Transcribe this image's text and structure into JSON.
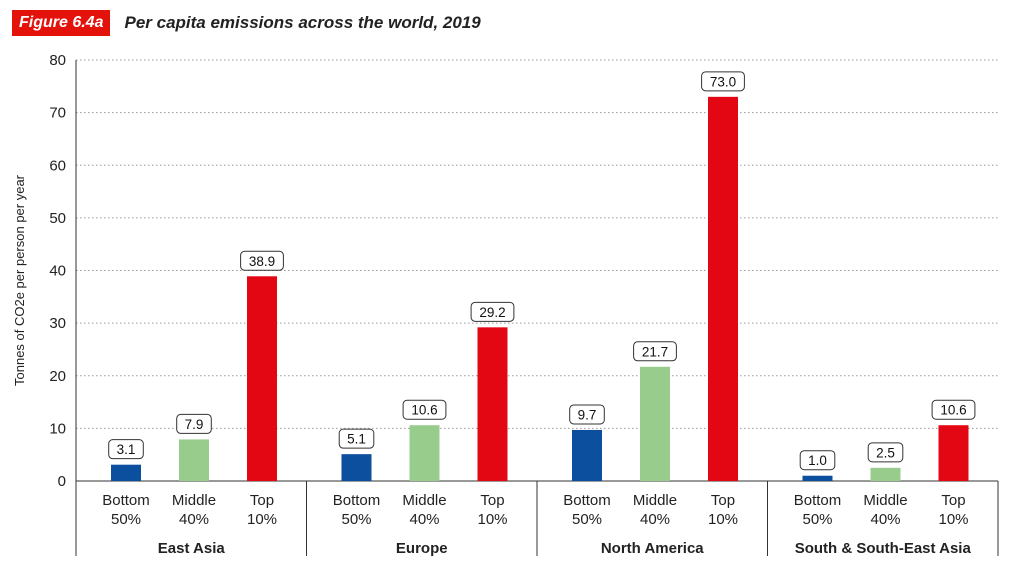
{
  "header": {
    "figure_label": "Figure 6.4a",
    "title": "Per capita emissions across the world, 2019"
  },
  "colors": {
    "bottom": "#0b4f9e",
    "middle": "#98cc8c",
    "top": "#e30613",
    "badge": "#e3120b"
  },
  "chart_data": {
    "type": "bar",
    "title": "Per capita emissions across the world, 2019",
    "ylabel": "Tonnes of CO2e per person per year",
    "ylim": [
      0,
      80
    ],
    "yticks": [
      "0",
      "10",
      "20",
      "30",
      "40",
      "50",
      "60",
      "70",
      "80"
    ],
    "grid": true,
    "bar_labels": [
      [
        "Bottom",
        "50%"
      ],
      [
        "Middle",
        "40%"
      ],
      [
        "Top",
        "10%"
      ]
    ],
    "groups": [
      {
        "name": "East Asia",
        "values": [
          3.1,
          7.9,
          38.9
        ],
        "labels": [
          "3.1",
          "7.9",
          "38.9"
        ]
      },
      {
        "name": "Europe",
        "values": [
          5.1,
          10.6,
          29.2
        ],
        "labels": [
          "5.1",
          "10.6",
          "29.2"
        ]
      },
      {
        "name": "North America",
        "values": [
          9.7,
          21.7,
          73.0
        ],
        "labels": [
          "9.7",
          "21.7",
          "73.0"
        ]
      },
      {
        "name": "South & South-East Asia",
        "values": [
          1.0,
          2.5,
          10.6
        ],
        "labels": [
          "1.0",
          "2.5",
          "10.6"
        ]
      }
    ]
  }
}
